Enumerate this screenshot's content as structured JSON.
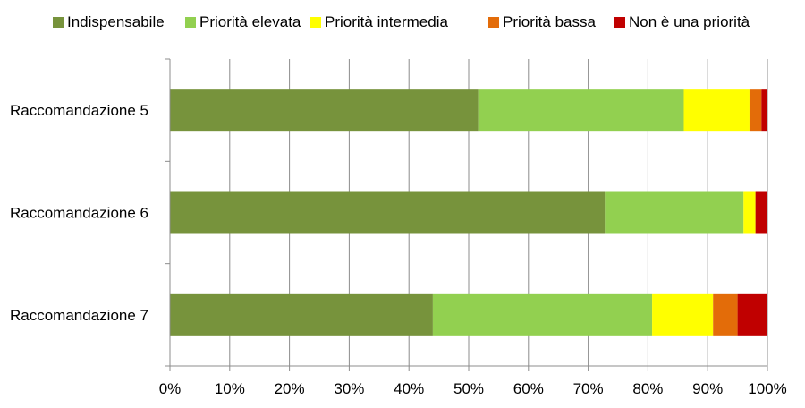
{
  "chart_data": {
    "type": "bar",
    "orientation": "horizontal",
    "stacked": "percent",
    "categories": [
      "Raccomandazione 5",
      "Raccomandazione 6",
      "Raccomandazione 7"
    ],
    "series": [
      {
        "name": "Indispensabile",
        "color": "#77933C",
        "values": [
          51.6,
          72.8,
          44.0
        ]
      },
      {
        "name": "Priorità elevata",
        "color": "#92D050",
        "values": [
          34.4,
          23.2,
          36.7
        ]
      },
      {
        "name": "Priorità intermedia",
        "color": "#FFFF00",
        "values": [
          11.0,
          2.0,
          10.2
        ]
      },
      {
        "name": "Priorità bassa",
        "color": "#E36C09",
        "values": [
          2.0,
          0.0,
          4.1
        ]
      },
      {
        "name": "Non è una priorità",
        "color": "#C00000",
        "values": [
          1.0,
          2.0,
          5.0
        ]
      }
    ],
    "xlim": [
      0,
      100
    ],
    "xticks": [
      "0%",
      "10%",
      "20%",
      "30%",
      "40%",
      "50%",
      "60%",
      "70%",
      "80%",
      "90%",
      "100%"
    ],
    "grid": "vertical",
    "legend": "top",
    "title": "",
    "xlabel": "",
    "ylabel": ""
  }
}
